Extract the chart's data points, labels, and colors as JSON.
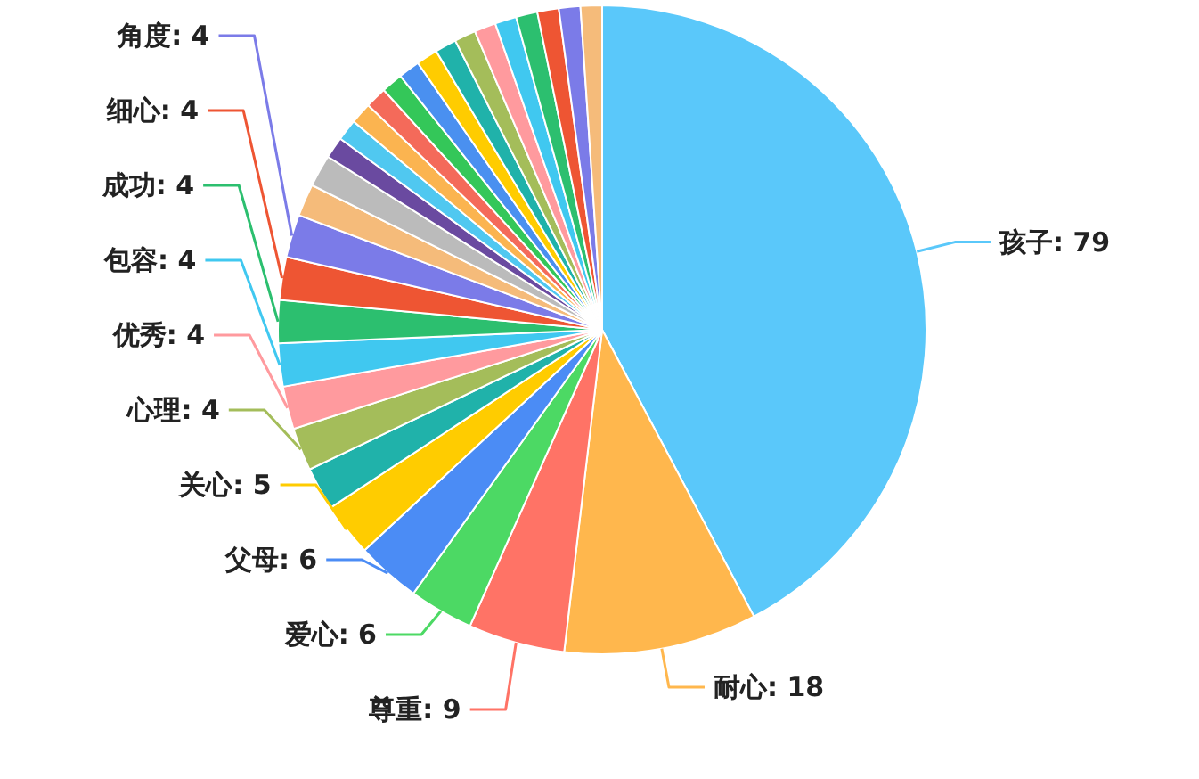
{
  "chart_data": {
    "type": "pie",
    "categories": [
      "孩子",
      "耐心",
      "尊重",
      "爱心",
      "父母",
      "关心",
      null,
      "心理",
      "优秀",
      "包容",
      "成功",
      "细心",
      "角度",
      null,
      null,
      null,
      null,
      null,
      null,
      null,
      null,
      null,
      null,
      null,
      null,
      null,
      null,
      null,
      null,
      null
    ],
    "values": [
      79,
      18,
      9,
      6,
      6,
      5,
      4,
      4,
      4,
      4,
      4,
      4,
      4,
      3,
      3,
      2,
      2,
      2,
      2,
      2,
      2,
      2,
      2,
      2,
      2,
      2,
      2,
      2,
      2,
      2
    ],
    "value_labels": [
      "79",
      "18",
      "9",
      "6",
      "6",
      "5",
      null,
      "4",
      "4",
      "4",
      "4",
      "4",
      "4",
      null,
      null,
      null,
      null,
      null,
      null,
      null,
      null,
      null,
      null,
      null,
      null,
      null,
      null,
      null,
      null,
      null
    ],
    "colors": [
      "#5ac8fa",
      "#ffb74d",
      "#ff7366",
      "#4cd964",
      "#4b8cf5",
      "#ffcc00",
      "#20b2aa",
      "#a4bd5a",
      "#ff9a9e",
      "#40c8f0",
      "#2cbf6f",
      "#ee5533",
      "#7b7be8",
      "#f5bb7a",
      "#bbbbbb",
      "#6a4aa0",
      "#50c8f0",
      "#fbb450",
      "#f46a5a",
      "#34c759",
      "#4a90f0",
      "#ffcc00",
      "#20b2aa",
      "#a4bd5a",
      "#ff9a9e",
      "#40c8f0",
      "#2cbf6f",
      "#ee5533",
      "#7b7be8",
      "#f5bb7a"
    ]
  }
}
